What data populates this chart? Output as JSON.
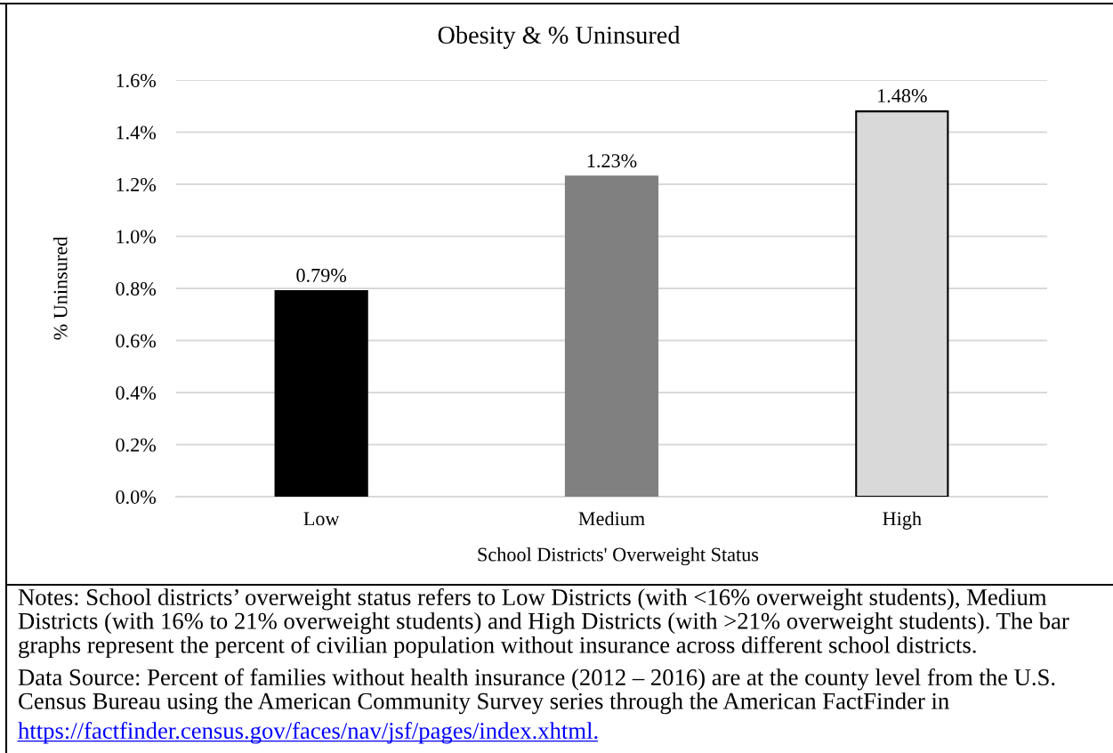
{
  "chart_data": {
    "type": "bar",
    "title": "Obesity & % Uninsured",
    "xlabel": "School Districts' Overweight Status",
    "ylabel": "% Uninsured",
    "categories": [
      "Low",
      "Medium",
      "High"
    ],
    "values": [
      0.79,
      1.23,
      1.48
    ],
    "colors": [
      "#000000",
      "#808080",
      "#d9d9d9"
    ],
    "value_labels": [
      "0.79%",
      "1.23%",
      "1.48%"
    ],
    "ylim": [
      0,
      1.6
    ],
    "yticks": [
      {
        "value": 0,
        "label": "0.0%"
      },
      {
        "value": 0.2,
        "label": "0.2%"
      },
      {
        "value": 0.4,
        "label": "0.4%"
      },
      {
        "value": 0.6,
        "label": "0.6%"
      },
      {
        "value": 0.8,
        "label": "0.8%"
      },
      {
        "value": 1.0,
        "label": "1.0%"
      },
      {
        "value": 1.2,
        "label": "1.2%"
      },
      {
        "value": 1.4,
        "label": "1.4%"
      },
      {
        "value": 1.6,
        "label": "1.6%"
      }
    ],
    "grid": "y",
    "annotations": [
      "Notes: School districts’ overweight status refers to Low Districts (with <16% overweight students), Medium\nDistricts (with 16% to 21% overweight students) and High Districts (with >21% overweight students). The bar\ngraphs represent the percent of civilian population without insurance across different school districts.",
      "Data Source: Percent of families without health insurance (2012 – 2016) are at the county level from the U.S.\nCensus Bureau using the American Community Survey series through the American FactFinder in",
      "https://factfinder.census.gov/faces/nav/jsf/pages/index.xhtml."
    ]
  }
}
